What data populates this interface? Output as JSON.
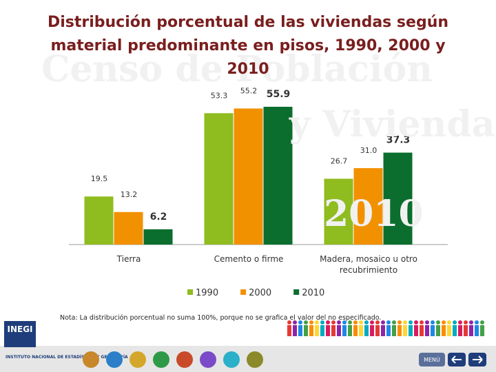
{
  "chart_data": {
    "type": "bar",
    "title": "Distribución porcentual de las viviendas según material predominante en pisos, 1990, 2000 y 2010",
    "categories": [
      "Tierra",
      "Cemento o firme",
      "Madera, mosaico u otro recubrimiento"
    ],
    "series": [
      {
        "name": "1990",
        "color": "#8fbc1f",
        "values": [
          19.5,
          53.3,
          26.7
        ]
      },
      {
        "name": "2000",
        "color": "#f29100",
        "values": [
          13.2,
          55.2,
          31.0
        ],
        "value_labels": [
          "13.2",
          "55.2",
          "31.0"
        ]
      },
      {
        "name": "2010",
        "color": "#0b6e2e",
        "values": [
          6.2,
          55.9,
          37.3
        ]
      }
    ],
    "note": "Nota: La distribución porcentual no suma 100%, porque no se grafica el valor del no especificado."
  },
  "watermark": [
    "Censo de Población",
    "y Vivienda",
    "2010"
  ],
  "footer": {
    "logo": "INEGI",
    "institute": "INSTITUTO NACIONAL DE ESTADÍSTICA Y GEOGRAFÍA",
    "menu": "MENÚ"
  }
}
